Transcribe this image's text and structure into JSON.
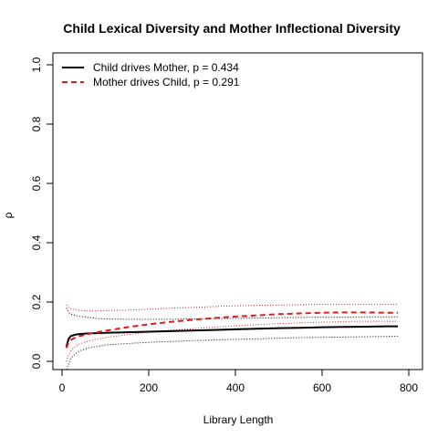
{
  "chart_data": {
    "type": "line",
    "title": "Child Lexical Diversity and Mother Inflectional Diversity",
    "xlabel": "Library Length",
    "ylabel": "ρ",
    "xlim": [
      0,
      800
    ],
    "ylim": [
      0,
      1
    ],
    "x_ticks": [
      "0",
      "200",
      "400",
      "600",
      "800"
    ],
    "y_ticks": [
      "0.0",
      "0.2",
      "0.4",
      "0.6",
      "0.8",
      "1.0"
    ],
    "legend_position": "top-left",
    "series": [
      {
        "name": "Child drives Mother, p = 0.434",
        "color": "#000000",
        "style": "solid",
        "x": [
          10,
          15,
          20,
          30,
          40,
          60,
          80,
          100,
          150,
          200,
          250,
          300,
          350,
          400,
          450,
          500,
          550,
          600,
          650,
          700,
          750,
          775
        ],
        "y": [
          0.05,
          0.075,
          0.085,
          0.09,
          0.092,
          0.094,
          0.095,
          0.096,
          0.098,
          0.1,
          0.102,
          0.104,
          0.106,
          0.108,
          0.11,
          0.112,
          0.113,
          0.115,
          0.116,
          0.117,
          0.118,
          0.118
        ],
        "band_upper": [
          0.18,
          0.165,
          0.16,
          0.155,
          0.152,
          0.148,
          0.145,
          0.143,
          0.142,
          0.142,
          0.142,
          0.143,
          0.144,
          0.145,
          0.146,
          0.147,
          0.148,
          0.149,
          0.149,
          0.15,
          0.15,
          0.15
        ],
        "band_lower": [
          -0.05,
          -0.01,
          0.01,
          0.025,
          0.035,
          0.045,
          0.05,
          0.055,
          0.06,
          0.064,
          0.067,
          0.07,
          0.072,
          0.074,
          0.076,
          0.078,
          0.08,
          0.081,
          0.082,
          0.083,
          0.084,
          0.085
        ]
      },
      {
        "name": "Mother drives Child, p = 0.291",
        "color": "#e31a1c",
        "style": "dashed",
        "x": [
          10,
          15,
          20,
          30,
          40,
          60,
          80,
          100,
          150,
          200,
          250,
          300,
          350,
          400,
          450,
          500,
          550,
          600,
          650,
          700,
          750,
          775
        ],
        "y": [
          0.045,
          0.065,
          0.072,
          0.08,
          0.085,
          0.092,
          0.098,
          0.103,
          0.115,
          0.125,
          0.133,
          0.14,
          0.146,
          0.151,
          0.155,
          0.159,
          0.162,
          0.164,
          0.165,
          0.165,
          0.164,
          0.164
        ],
        "band_upper": [
          0.19,
          0.182,
          0.178,
          0.175,
          0.172,
          0.17,
          0.17,
          0.171,
          0.173,
          0.176,
          0.179,
          0.182,
          0.185,
          0.187,
          0.189,
          0.19,
          0.191,
          0.192,
          0.192,
          0.192,
          0.192,
          0.192
        ],
        "band_lower": [
          0.0,
          0.02,
          0.035,
          0.05,
          0.058,
          0.068,
          0.075,
          0.08,
          0.09,
          0.098,
          0.105,
          0.11,
          0.115,
          0.12,
          0.124,
          0.127,
          0.13,
          0.132,
          0.134,
          0.135,
          0.135,
          0.135
        ]
      }
    ]
  }
}
